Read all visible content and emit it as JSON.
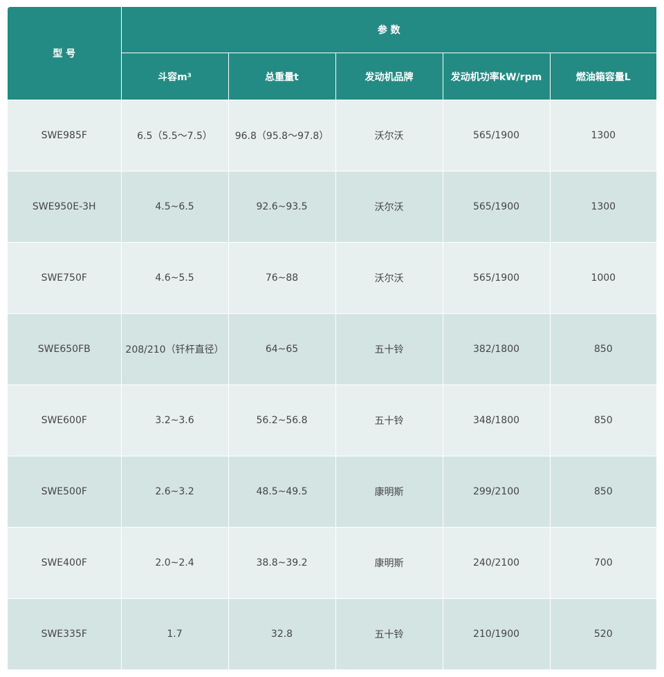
{
  "header": {
    "model": "型 号",
    "params": "参 数",
    "columns": [
      "斗容m³",
      "总重量t",
      "发动机品牌",
      "发动机功率kW/rpm",
      "燃油箱容量L"
    ]
  },
  "rows": [
    [
      "SWE985F",
      "6.5（5.5～7.5）",
      "96.8（95.8～97.8）",
      "沃尔沃",
      "565/1900",
      "1300"
    ],
    [
      "SWE950E-3H",
      "4.5~6.5",
      "92.6~93.5",
      "沃尔沃",
      "565/1900",
      "1300"
    ],
    [
      "SWE750F",
      "4.6~5.5",
      "76~88",
      "沃尔沃",
      "565/1900",
      "1000"
    ],
    [
      "SWE650FB",
      "208/210（钎杆直径）",
      "64~65",
      "五十铃",
      "382/1800",
      "850"
    ],
    [
      "SWE600F",
      "3.2~3.6",
      "56.2~56.8",
      "五十铃",
      "348/1800",
      "850"
    ],
    [
      "SWE500F",
      "2.6~3.2",
      "48.5~49.5",
      "康明斯",
      "299/2100",
      "850"
    ],
    [
      "SWE400F",
      "2.0~2.4",
      "38.8~39.2",
      "康明斯",
      "240/2100",
      "700"
    ],
    [
      "SWE335F",
      "1.7",
      "32.8",
      "五十铃",
      "210/1900",
      "520"
    ]
  ],
  "colors": {
    "header": "#238b83",
    "row_light": "#e8f0ef",
    "row_dark": "#d4e4e2"
  }
}
